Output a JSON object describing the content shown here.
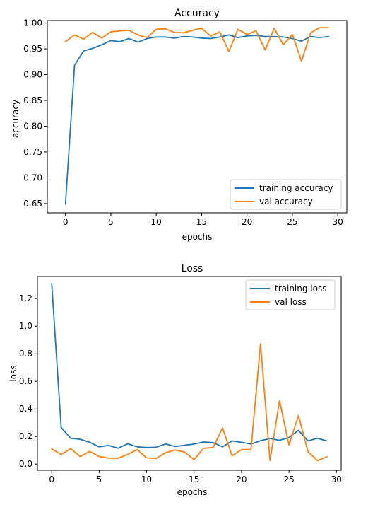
{
  "chart_data": [
    {
      "type": "line",
      "title": "Accuracy",
      "xlabel": "epochs",
      "ylabel": "accuracy",
      "xlim": [
        -2.0,
        31.0
      ],
      "ylim": [
        0.632,
        1.005
      ],
      "xticks": [
        0,
        5,
        10,
        15,
        20,
        25,
        30
      ],
      "xtick_labels": [
        "0",
        "5",
        "10",
        "15",
        "20",
        "25",
        "30"
      ],
      "yticks": [
        0.65,
        0.7,
        0.75,
        0.8,
        0.85,
        0.9,
        0.95,
        1.0
      ],
      "ytick_labels": [
        "0.65",
        "0.70",
        "0.75",
        "0.80",
        "0.85",
        "0.90",
        "0.95",
        "1.00"
      ],
      "grid": false,
      "legend_position": "lower-right",
      "x": [
        0,
        1,
        2,
        3,
        4,
        5,
        6,
        7,
        8,
        9,
        10,
        11,
        12,
        13,
        14,
        15,
        16,
        17,
        18,
        19,
        20,
        21,
        22,
        23,
        24,
        25,
        26,
        27,
        28,
        29
      ],
      "series": [
        {
          "name": "training accuracy",
          "color": "#1f77b4",
          "values": [
            0.649,
            0.918,
            0.946,
            0.951,
            0.958,
            0.966,
            0.964,
            0.97,
            0.963,
            0.97,
            0.973,
            0.973,
            0.971,
            0.974,
            0.973,
            0.971,
            0.97,
            0.973,
            0.977,
            0.972,
            0.975,
            0.976,
            0.974,
            0.974,
            0.973,
            0.97,
            0.965,
            0.974,
            0.972,
            0.974
          ]
        },
        {
          "name": "val accuracy",
          "color": "#ff7f0e",
          "values": [
            0.964,
            0.977,
            0.969,
            0.982,
            0.971,
            0.983,
            0.985,
            0.986,
            0.977,
            0.972,
            0.988,
            0.989,
            0.982,
            0.981,
            0.986,
            0.99,
            0.975,
            0.983,
            0.945,
            0.988,
            0.978,
            0.985,
            0.948,
            0.99,
            0.958,
            0.978,
            0.926,
            0.981,
            0.991,
            0.991
          ]
        }
      ]
    },
    {
      "type": "line",
      "title": "Loss",
      "xlabel": "epochs",
      "ylabel": "loss",
      "xlim": [
        -1.5,
        30.5
      ],
      "ylim": [
        -0.045,
        1.36
      ],
      "xticks": [
        0,
        5,
        10,
        15,
        20,
        25,
        30
      ],
      "xtick_labels": [
        "0",
        "5",
        "10",
        "15",
        "20",
        "25",
        "30"
      ],
      "yticks": [
        0.0,
        0.2,
        0.4,
        0.6,
        0.8,
        1.0,
        1.2
      ],
      "ytick_labels": [
        "0.0",
        "0.2",
        "0.4",
        "0.6",
        "0.8",
        "1.0",
        "1.2"
      ],
      "grid": false,
      "legend_position": "upper-right",
      "x": [
        0,
        1,
        2,
        3,
        4,
        5,
        6,
        7,
        8,
        9,
        10,
        11,
        12,
        13,
        14,
        15,
        16,
        17,
        18,
        19,
        20,
        21,
        22,
        23,
        24,
        25,
        26,
        27,
        28,
        29
      ],
      "series": [
        {
          "name": "training loss",
          "color": "#1f77b4",
          "values": [
            1.31,
            0.265,
            0.188,
            0.18,
            0.158,
            0.125,
            0.135,
            0.115,
            0.148,
            0.125,
            0.12,
            0.122,
            0.146,
            0.128,
            0.136,
            0.145,
            0.16,
            0.156,
            0.125,
            0.168,
            0.158,
            0.145,
            0.17,
            0.185,
            0.173,
            0.193,
            0.245,
            0.168,
            0.188,
            0.168
          ]
        },
        {
          "name": "val loss",
          "color": "#ff7f0e",
          "values": [
            0.11,
            0.07,
            0.112,
            0.055,
            0.092,
            0.055,
            0.043,
            0.042,
            0.07,
            0.105,
            0.045,
            0.04,
            0.082,
            0.102,
            0.088,
            0.032,
            0.115,
            0.12,
            0.262,
            0.06,
            0.105,
            0.105,
            0.872,
            0.025,
            0.46,
            0.138,
            0.352,
            0.09,
            0.025,
            0.053
          ]
        }
      ]
    }
  ]
}
